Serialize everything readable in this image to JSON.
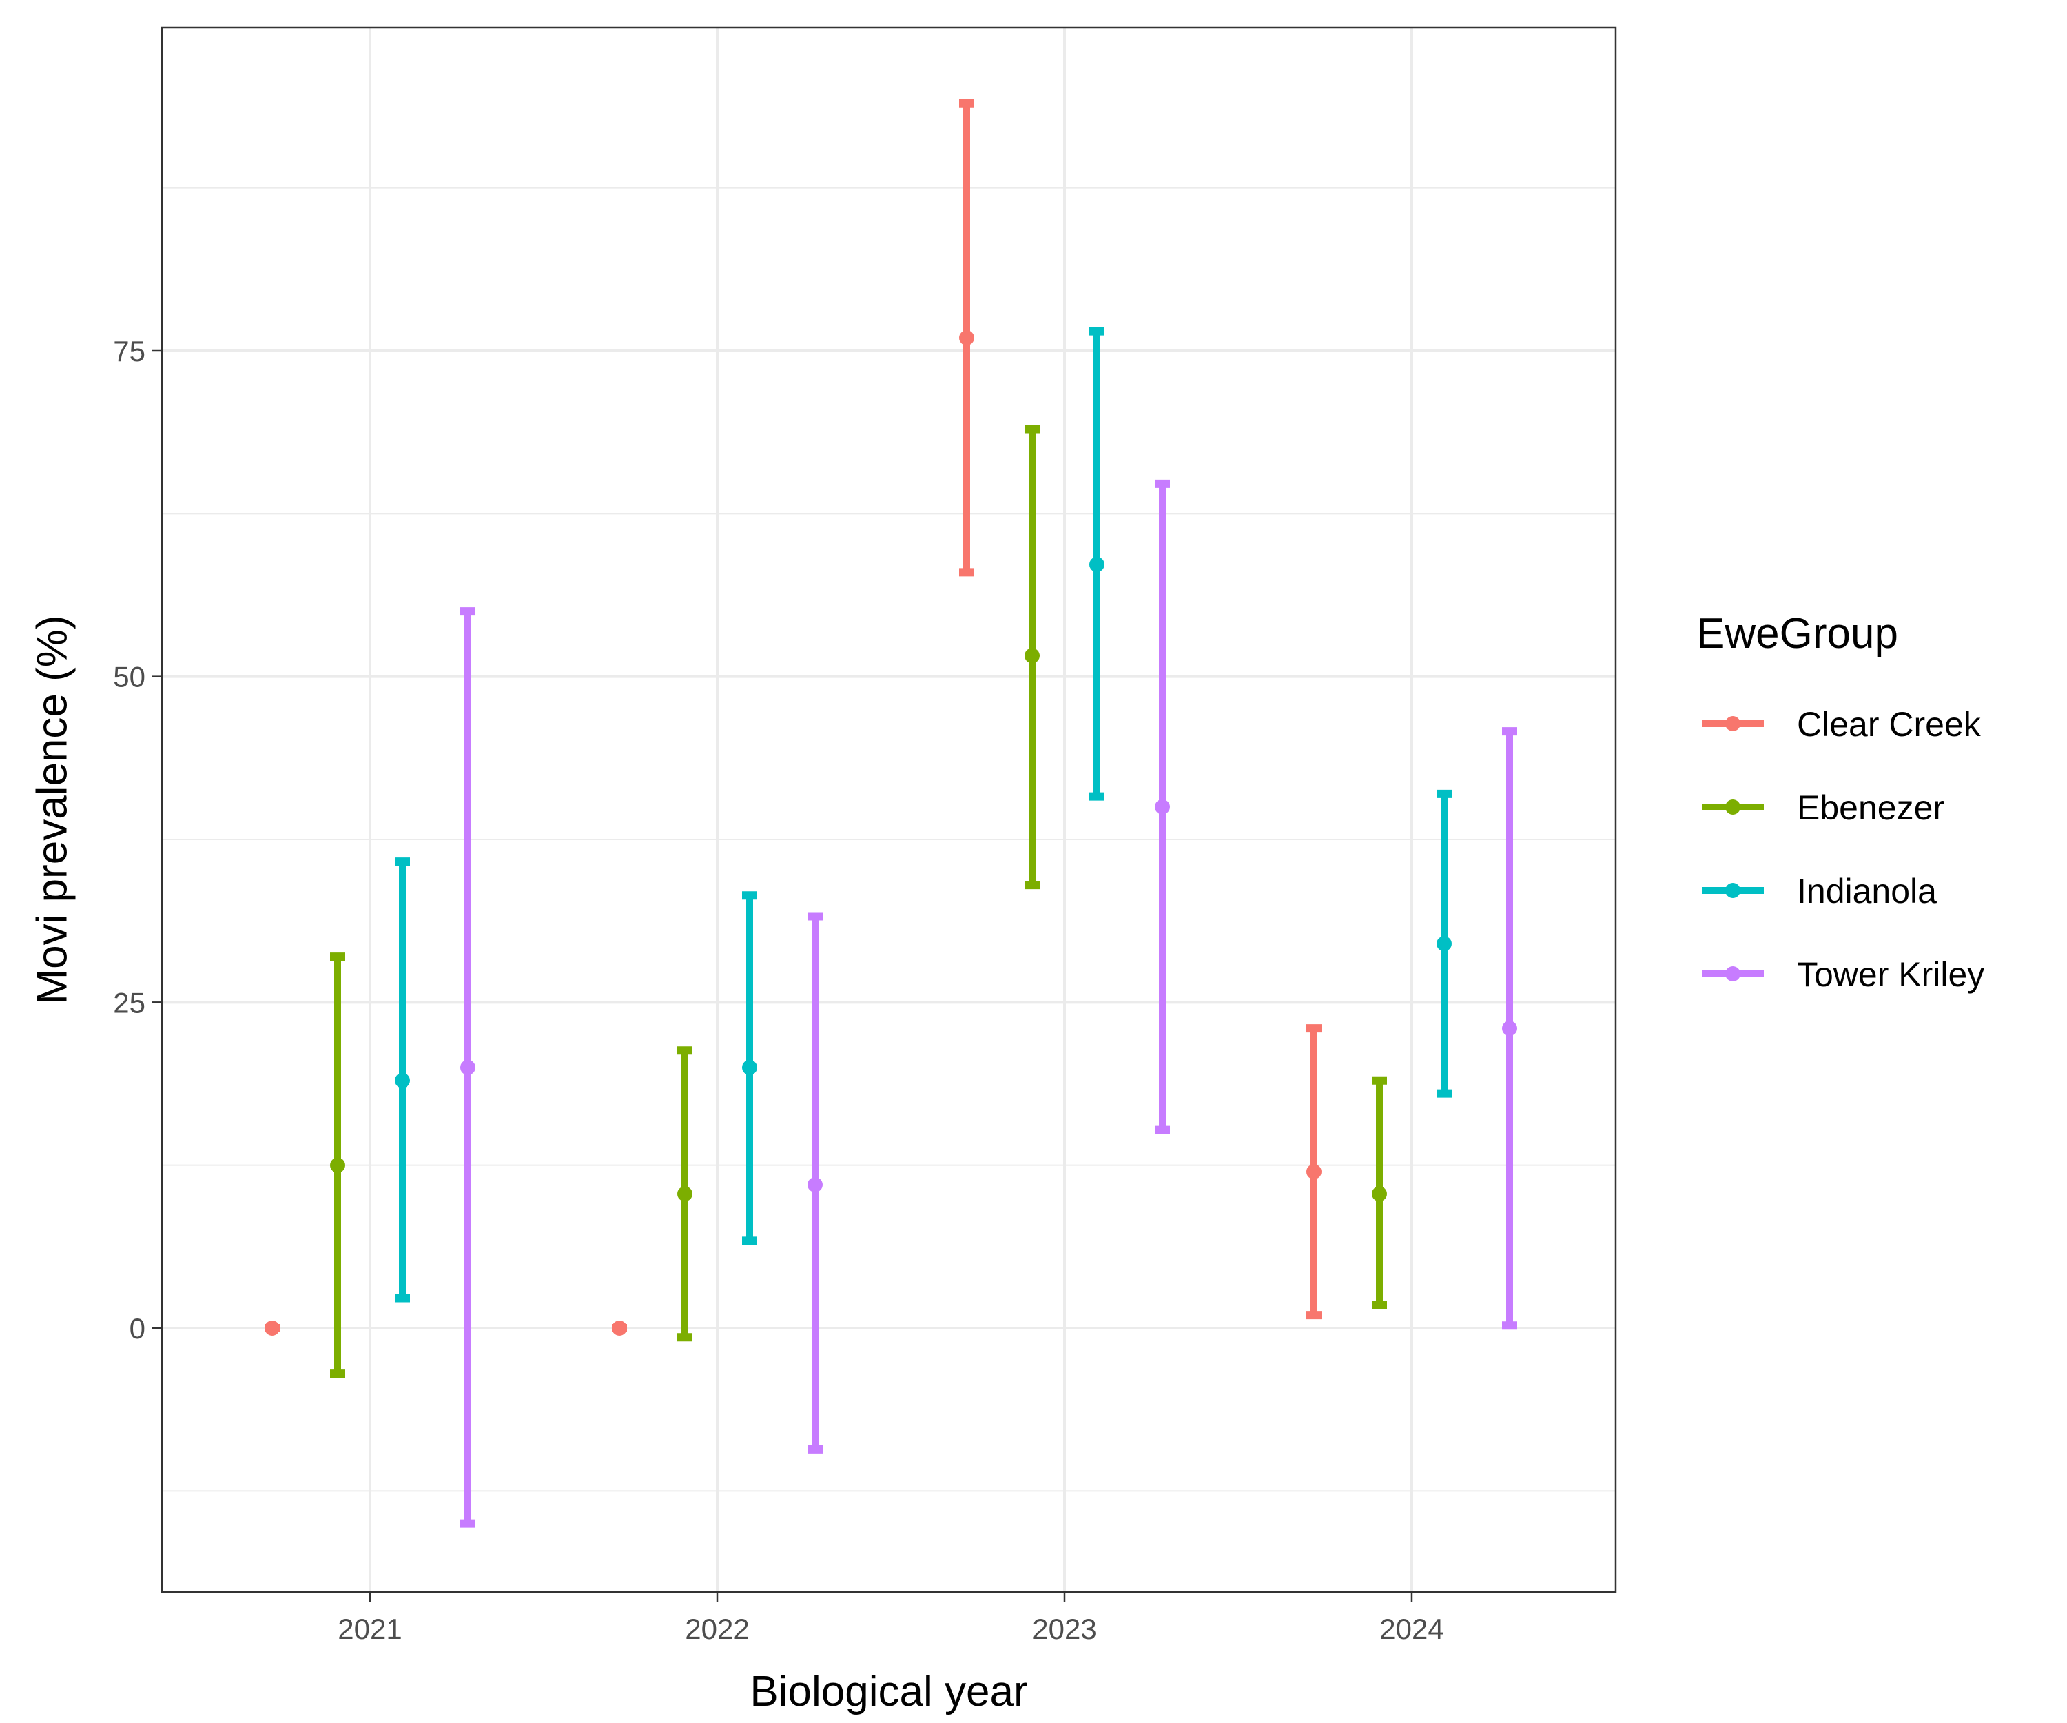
{
  "chart_data": {
    "type": "errorbar",
    "xlabel": "Biological year",
    "ylabel": "Movi prevalence (%)",
    "categories": [
      "2021",
      "2022",
      "2023",
      "2024"
    ],
    "ylim": [
      -20,
      100
    ],
    "yticks": [
      0,
      25,
      50,
      75
    ],
    "grid": true,
    "legend": {
      "title": "EweGroup",
      "position": "right"
    },
    "series": [
      {
        "name": "Clear Creek",
        "color": "#F8766D",
        "points": [
          {
            "x": "2021",
            "y": 0,
            "ymin": 0,
            "ymax": 0
          },
          {
            "x": "2022",
            "y": 0,
            "ymin": 0,
            "ymax": 0
          },
          {
            "x": "2023",
            "y": 76,
            "ymin": 58,
            "ymax": 94
          },
          {
            "x": "2024",
            "y": 12,
            "ymin": 1,
            "ymax": 23
          }
        ]
      },
      {
        "name": "Ebenezer",
        "color": "#7CAE00",
        "points": [
          {
            "x": "2021",
            "y": 12.5,
            "ymin": -3.5,
            "ymax": 28.5
          },
          {
            "x": "2022",
            "y": 10.3,
            "ymin": -0.7,
            "ymax": 21.3
          },
          {
            "x": "2023",
            "y": 51.6,
            "ymin": 34,
            "ymax": 69
          },
          {
            "x": "2024",
            "y": 10.3,
            "ymin": 1.8,
            "ymax": 19
          }
        ]
      },
      {
        "name": "Indianola",
        "color": "#00BFC4",
        "points": [
          {
            "x": "2021",
            "y": 19,
            "ymin": 2.3,
            "ymax": 35.8
          },
          {
            "x": "2022",
            "y": 20,
            "ymin": 6.7,
            "ymax": 33.2
          },
          {
            "x": "2023",
            "y": 58.6,
            "ymin": 40.8,
            "ymax": 76.5
          },
          {
            "x": "2024",
            "y": 29.5,
            "ymin": 18,
            "ymax": 41
          }
        ]
      },
      {
        "name": "Tower Kriley",
        "color": "#C77CFF",
        "points": [
          {
            "x": "2021",
            "y": 20,
            "ymin": -15,
            "ymax": 55
          },
          {
            "x": "2022",
            "y": 11,
            "ymin": -9.3,
            "ymax": 31.6
          },
          {
            "x": "2023",
            "y": 40,
            "ymin": 15.2,
            "ymax": 64.8
          },
          {
            "x": "2024",
            "y": 23,
            "ymin": 0.2,
            "ymax": 45.8
          }
        ]
      }
    ]
  }
}
